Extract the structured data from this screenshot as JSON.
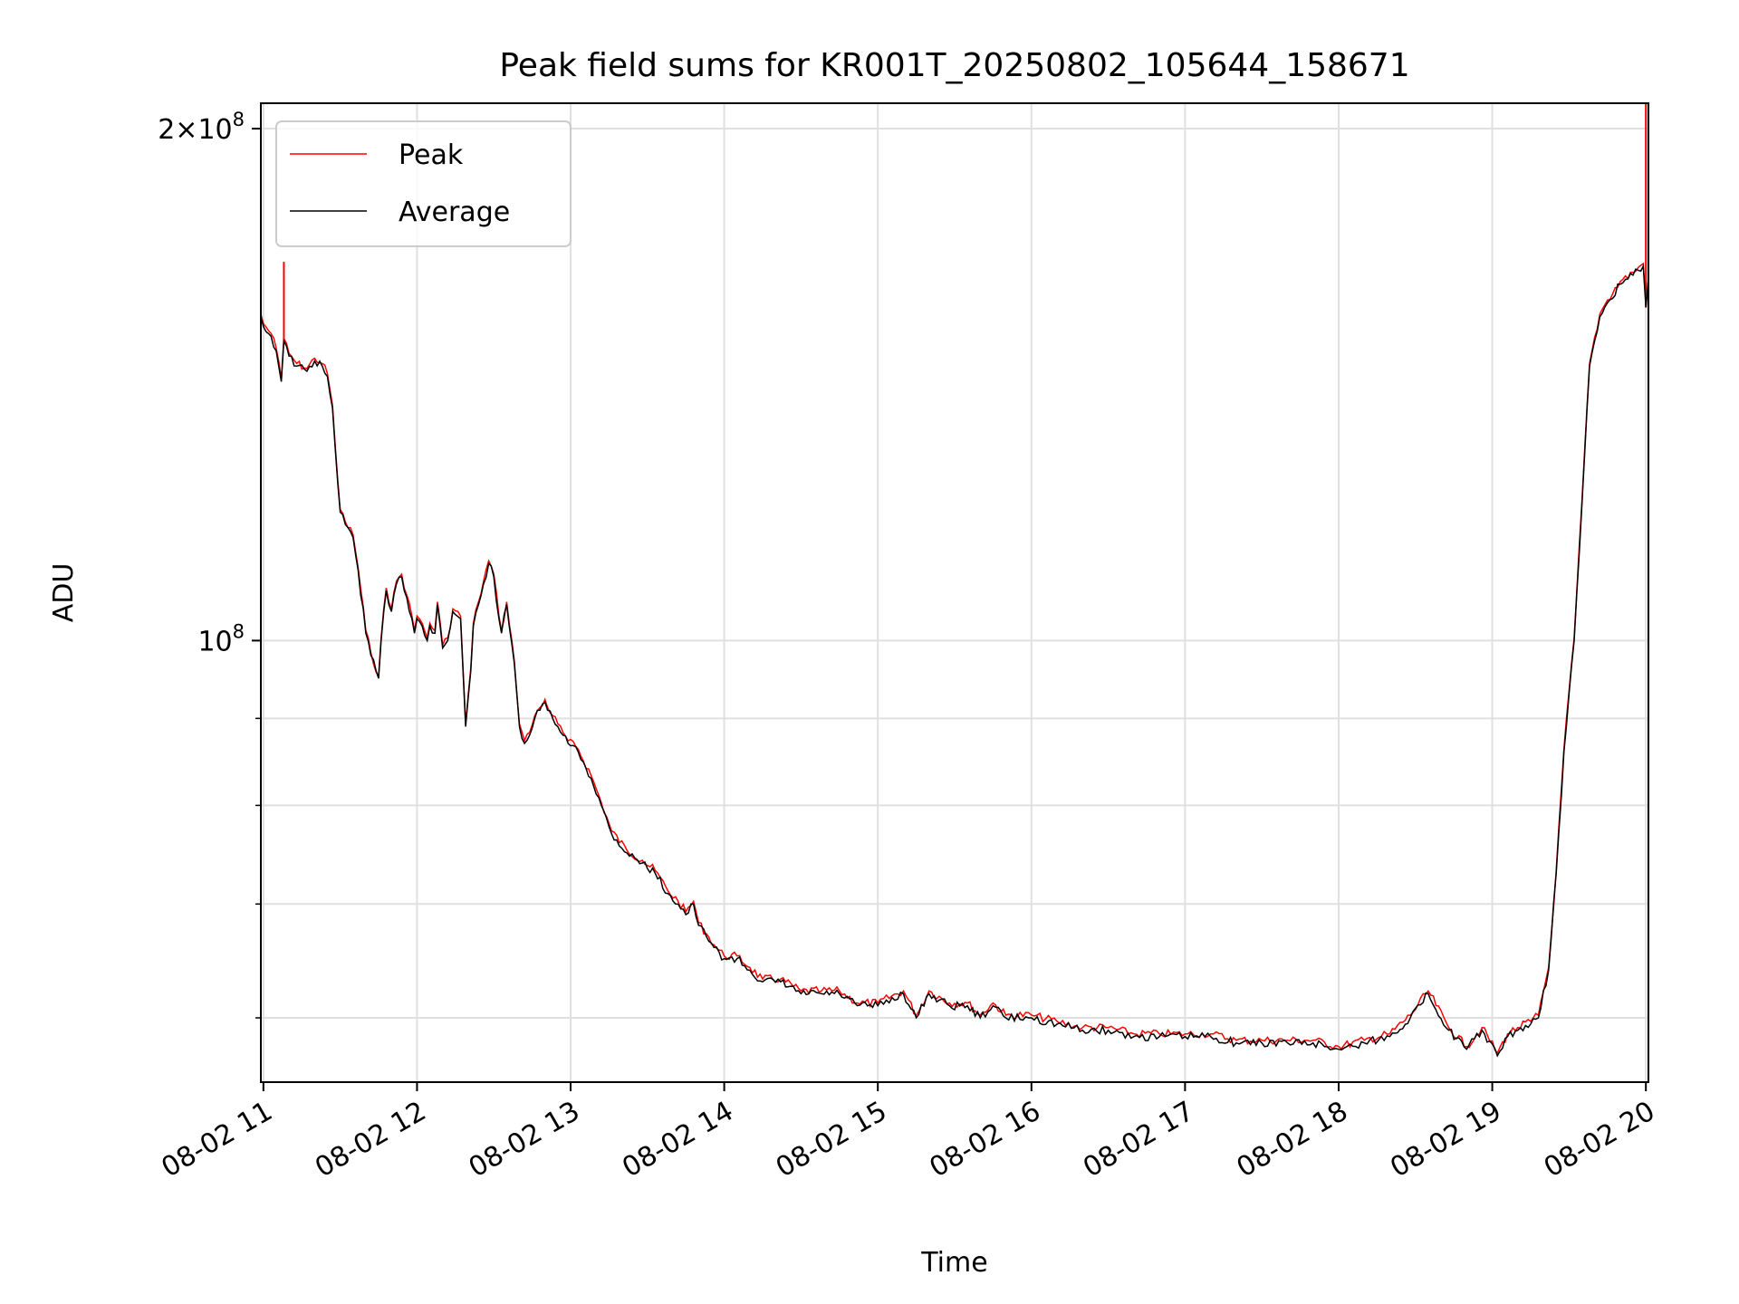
{
  "chart_data": {
    "type": "line",
    "title": "Peak field sums for KR001T_20250802_105644_158671",
    "xlabel": "Time",
    "ylabel": "ADU",
    "yscale": "log",
    "grid": true,
    "legend_placement": "top-left",
    "xlim": [
      "2025-08-02 10:59",
      "2025-08-02 20:01"
    ],
    "ylim": [
      55000000,
      207000000
    ],
    "x_ticks": [
      "08-02 11",
      "08-02 12",
      "08-02 13",
      "08-02 14",
      "08-02 15",
      "08-02 16",
      "08-02 17",
      "08-02 18",
      "08-02 19",
      "08-02 20"
    ],
    "y_tick_labels": [
      {
        "value": 100000000,
        "mantissa": "",
        "base": "10",
        "exp": "8"
      },
      {
        "value": 200000000,
        "mantissa": "2×",
        "base": "10",
        "exp": "8"
      }
    ],
    "y_minor_ticks": [
      60000000,
      70000000,
      80000000,
      90000000
    ],
    "series": [
      {
        "name": "Peak",
        "color": "#ff0000",
        "spikes": [
          {
            "x": "2025-08-02 11:08",
            "y": 167000000
          },
          {
            "x": "2025-08-02 20:00",
            "y": 207000000
          }
        ]
      },
      {
        "name": "Average",
        "color": "#000000",
        "x": [
          "2025-08-02 10:59",
          "2025-08-02 11:00",
          "2025-08-02 11:03",
          "2025-08-02 11:05",
          "2025-08-02 11:07",
          "2025-08-02 11:08",
          "2025-08-02 11:09",
          "2025-08-02 11:10",
          "2025-08-02 11:13",
          "2025-08-02 11:17",
          "2025-08-02 11:20",
          "2025-08-02 11:23",
          "2025-08-02 11:25",
          "2025-08-02 11:27",
          "2025-08-02 11:28",
          "2025-08-02 11:29",
          "2025-08-02 11:30",
          "2025-08-02 11:32",
          "2025-08-02 11:35",
          "2025-08-02 11:37",
          "2025-08-02 11:40",
          "2025-08-02 11:42",
          "2025-08-02 11:45",
          "2025-08-02 11:46",
          "2025-08-02 11:47",
          "2025-08-02 11:48",
          "2025-08-02 11:49",
          "2025-08-02 11:50",
          "2025-08-02 11:52",
          "2025-08-02 11:54",
          "2025-08-02 11:56",
          "2025-08-02 11:58",
          "2025-08-02 11:59",
          "2025-08-02 12:00",
          "2025-08-02 12:02",
          "2025-08-02 12:04",
          "2025-08-02 12:05",
          "2025-08-02 12:07",
          "2025-08-02 12:08",
          "2025-08-02 12:10",
          "2025-08-02 12:12",
          "2025-08-02 12:14",
          "2025-08-02 12:17",
          "2025-08-02 12:19",
          "2025-08-02 12:21",
          "2025-08-02 12:22",
          "2025-08-02 12:24",
          "2025-08-02 12:26",
          "2025-08-02 12:28",
          "2025-08-02 12:30",
          "2025-08-02 12:32",
          "2025-08-02 12:33",
          "2025-08-02 12:35",
          "2025-08-02 12:36",
          "2025-08-02 12:38",
          "2025-08-02 12:40",
          "2025-08-02 12:42",
          "2025-08-02 12:44",
          "2025-08-02 12:46",
          "2025-08-02 12:48",
          "2025-08-02 12:50",
          "2025-08-02 12:51",
          "2025-08-02 12:53",
          "2025-08-02 12:55",
          "2025-08-02 12:57",
          "2025-08-02 12:59",
          "2025-08-02 13:03",
          "2025-08-02 13:08",
          "2025-08-02 13:12",
          "2025-08-02 13:16",
          "2025-08-02 13:22",
          "2025-08-02 13:28",
          "2025-08-02 13:33",
          "2025-08-02 13:38",
          "2025-08-02 13:42",
          "2025-08-02 13:45",
          "2025-08-02 13:48",
          "2025-08-02 13:50",
          "2025-08-02 13:53",
          "2025-08-02 13:56",
          "2025-08-02 14:00",
          "2025-08-02 14:05",
          "2025-08-02 14:10",
          "2025-08-02 14:15",
          "2025-08-02 14:22",
          "2025-08-02 14:30",
          "2025-08-02 14:38",
          "2025-08-02 14:45",
          "2025-08-02 14:52",
          "2025-08-02 15:00",
          "2025-08-02 15:10",
          "2025-08-02 15:15",
          "2025-08-02 15:20",
          "2025-08-02 15:28",
          "2025-08-02 15:35",
          "2025-08-02 15:40",
          "2025-08-02 15:45",
          "2025-08-02 15:50",
          "2025-08-02 16:00",
          "2025-08-02 16:10",
          "2025-08-02 16:20",
          "2025-08-02 16:30",
          "2025-08-02 16:40",
          "2025-08-02 16:50",
          "2025-08-02 17:00",
          "2025-08-02 17:10",
          "2025-08-02 17:20",
          "2025-08-02 17:30",
          "2025-08-02 17:40",
          "2025-08-02 17:50",
          "2025-08-02 18:00",
          "2025-08-02 18:10",
          "2025-08-02 18:20",
          "2025-08-02 18:28",
          "2025-08-02 18:35",
          "2025-08-02 18:43",
          "2025-08-02 18:50",
          "2025-08-02 18:56",
          "2025-08-02 19:02",
          "2025-08-02 19:06",
          "2025-08-02 19:10",
          "2025-08-02 19:15",
          "2025-08-02 19:18",
          "2025-08-02 19:22",
          "2025-08-02 19:25",
          "2025-08-02 19:28",
          "2025-08-02 19:32",
          "2025-08-02 19:35",
          "2025-08-02 19:38",
          "2025-08-02 19:42",
          "2025-08-02 19:45",
          "2025-08-02 19:50",
          "2025-08-02 19:55",
          "2025-08-02 19:59",
          "2025-08-02 20:00",
          "2025-08-02 20:01"
        ],
        "values": [
          155000000,
          153000000,
          151000000,
          148000000,
          142000000,
          150000000,
          149000000,
          147000000,
          145000000,
          144000000,
          146000000,
          145000000,
          143000000,
          137000000,
          130000000,
          124000000,
          119000000,
          117000000,
          115000000,
          110000000,
          101000000,
          98000000,
          95000000,
          100000000,
          104000000,
          107000000,
          105000000,
          104000000,
          108000000,
          109000000,
          106000000,
          103000000,
          101000000,
          103000000,
          102000000,
          100000000,
          102000000,
          101000000,
          105000000,
          99000000,
          100000000,
          104000000,
          103000000,
          89000000,
          96000000,
          102000000,
          105000000,
          108000000,
          111000000,
          109000000,
          103000000,
          101000000,
          105000000,
          102000000,
          97000000,
          89000000,
          87000000,
          88000000,
          90000000,
          91000000,
          92000000,
          91000000,
          90000000,
          89000000,
          88000000,
          87000000,
          86000000,
          83000000,
          80000000,
          77000000,
          75000000,
          74000000,
          73000000,
          71000000,
          70000000,
          69000000,
          70000000,
          68000000,
          67000000,
          66000000,
          65000000,
          65000000,
          64000000,
          63000000,
          63000000,
          62000000,
          62000000,
          62000000,
          61000000,
          61000000,
          62000000,
          60000000,
          62000000,
          61000000,
          61000000,
          60000000,
          61000000,
          60000000,
          60000000,
          59500000,
          59000000,
          59000000,
          58500000,
          58500000,
          58500000,
          58500000,
          58000000,
          58000000,
          58000000,
          58000000,
          57500000,
          58000000,
          58500000,
          60000000,
          62000000,
          59000000,
          57500000,
          59000000,
          57000000,
          58500000,
          59000000,
          59500000,
          60000000,
          64000000,
          73000000,
          86000000,
          100000000,
          120000000,
          145000000,
          155000000,
          158000000,
          162000000,
          164000000,
          166000000,
          157000000,
          163000000
        ]
      }
    ]
  }
}
